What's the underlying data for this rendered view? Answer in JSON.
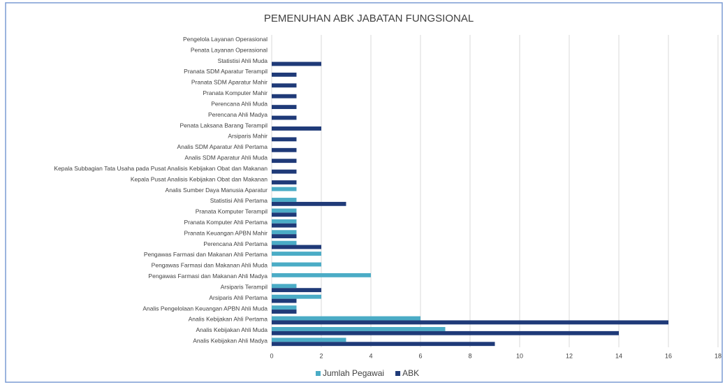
{
  "chart_data": {
    "type": "hbar",
    "title": "PEMENUHAN ABK JABATAN FUNGSIONAL",
    "categories": [
      "Pengelola Layanan Operasional",
      "Penata Layanan Operasional",
      "Statistisi Ahli Muda",
      "Pranata SDM Aparatur Terampil",
      "Pranata SDM Aparatur Mahir",
      "Pranata Komputer Mahir",
      "Perencana Ahli Muda",
      "Perencana Ahli Madya",
      "Penata Laksana Barang Terampil",
      "Arsiparis Mahir",
      "Analis SDM Aparatur Ahli Pertama",
      "Analis SDM Aparatur Ahli Muda",
      "Kepala Subbagian Tata Usaha pada Pusat Analisis Kebijakan Obat dan Makanan",
      "Kepala Pusat Analisis Kebijakan Obat dan Makanan",
      "Analis Sumber Daya Manusia Aparatur",
      "Statistisi Ahli Pertama",
      "Pranata Komputer Terampil",
      "Pranata Komputer Ahli Pertama",
      "Pranata Keuangan APBN Mahir",
      "Perencana Ahli Pertama",
      "Pengawas Farmasi dan Makanan Ahli Pertama",
      "Pengawas Farmasi dan Makanan Ahli Muda",
      "Pengawas Farmasi dan Makanan Ahli Madya",
      "Arsiparis Terampil",
      "Arsiparis Ahli Pertama",
      "Analis Pengelolaan Keuangan APBN Ahli Muda",
      "Analis Kebijakan Ahli Pertama",
      "Analis Kebijakan Ahli Muda",
      "Analis Kebijakan Ahli Madya"
    ],
    "series": [
      {
        "name": "Jumlah Pegawai",
        "color": "#4bacc6",
        "values": [
          0,
          0,
          0,
          0,
          0,
          0,
          0,
          0,
          0,
          0,
          0,
          0,
          0,
          0,
          1,
          1,
          1,
          1,
          1,
          1,
          2,
          2,
          4,
          1,
          2,
          1,
          6,
          7,
          3
        ]
      },
      {
        "name": "ABK",
        "color": "#1f3a78",
        "values": [
          0,
          0,
          2,
          1,
          1,
          1,
          1,
          1,
          2,
          1,
          1,
          1,
          1,
          1,
          0,
          3,
          1,
          1,
          1,
          2,
          0,
          0,
          0,
          2,
          1,
          1,
          16,
          14,
          9
        ]
      }
    ],
    "xlim": [
      0,
      18
    ],
    "xticks": [
      0,
      2,
      4,
      6,
      8,
      10,
      12,
      14,
      16,
      18
    ],
    "grid": true,
    "legend": "bottom"
  }
}
